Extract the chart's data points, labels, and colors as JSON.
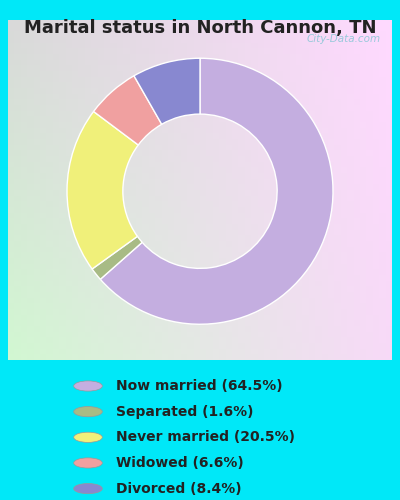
{
  "title": "Marital status in North Cannon, TN",
  "slices": [
    64.5,
    1.6,
    20.5,
    6.6,
    8.4
  ],
  "labels": [
    "Now married (64.5%)",
    "Separated (1.6%)",
    "Never married (20.5%)",
    "Widowed (6.6%)",
    "Divorced (8.4%)"
  ],
  "colors": [
    "#c4aee0",
    "#a8bb85",
    "#f0f07a",
    "#f0a0a0",
    "#8888d0"
  ],
  "outer_bg": "#00e8f8",
  "chart_bg_tl": "#c8edd8",
  "chart_bg_br": "#e8f8f0",
  "title_fontsize": 13,
  "title_color": "#222222",
  "legend_fontsize": 10,
  "watermark": "City-Data.com",
  "startangle": 90,
  "donut_width": 0.42
}
